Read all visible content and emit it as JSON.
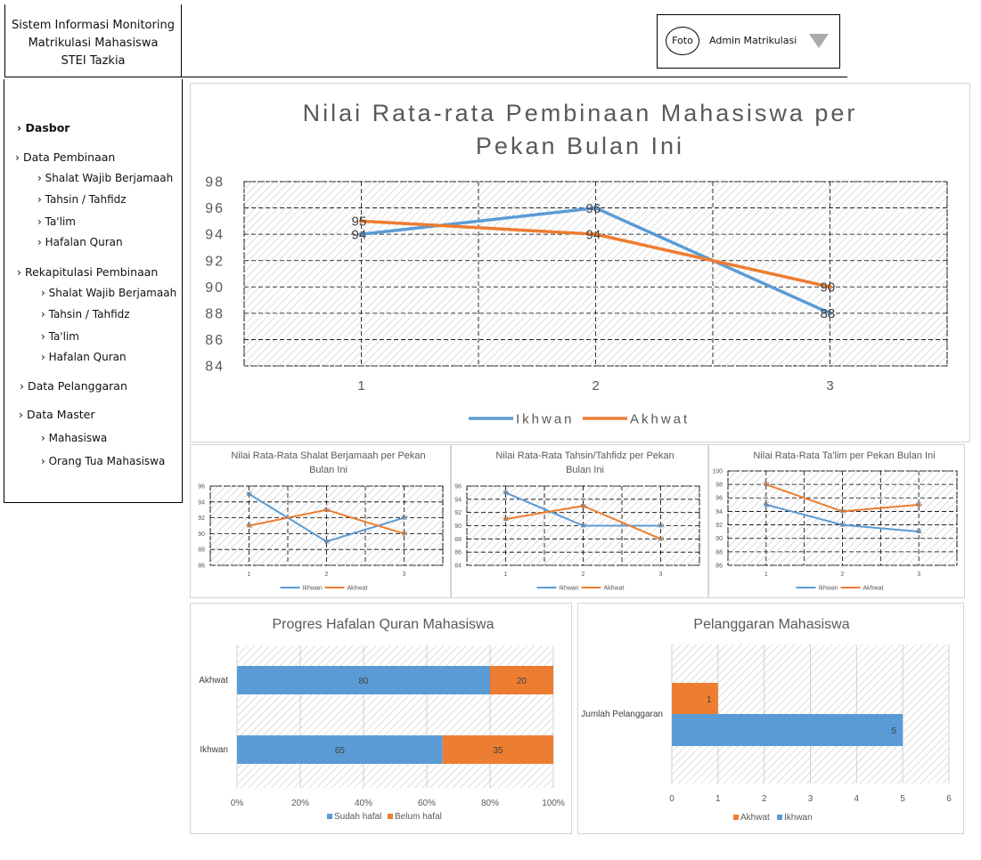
{
  "header": {
    "app_title_lines": [
      "Sistem Informasi Monitoring",
      "Matrikulasi Mahasiswa",
      "STEI Tazkia"
    ],
    "user": {
      "avatar_label": "Foto",
      "name": "Admin Matrikulasi",
      "dropdown_icon": "triangle-down-icon"
    }
  },
  "sidebar": {
    "dashboard": "› Dasbor",
    "pembinaan": {
      "label": "› Data Pembinaan",
      "items": [
        "› Shalat Wajib Berjamaah",
        "› Tahsin / Tahfidz",
        "› Ta'lim",
        "› Hafalan Quran"
      ]
    },
    "rekap": {
      "label": "› Rekapitulasi  Pembinaan",
      "items": [
        "› Shalat Wajib Berjamaah",
        "› Tahsin / Tahfidz",
        "› Ta'lim",
        "› Hafalan Quran"
      ]
    },
    "pelanggaran": "› Data Pelanggaran",
    "master": {
      "label": "› Data Master",
      "items": [
        "› Mahasiswa",
        "› Orang Tua  Mahasiswa"
      ]
    }
  },
  "colors": {
    "ikhwan": "#5b9bd5",
    "akhwat": "#ed7d31",
    "grid_hatch": "#bfbfbf",
    "text": "#595959"
  },
  "chart_data": [
    {
      "id": "main",
      "type": "line",
      "title_lines": [
        "Nilai Rata-rata Pembinaan Mahasiswa per",
        "Pekan Bulan Ini"
      ],
      "categories": [
        "1",
        "2",
        "3"
      ],
      "yticks": [
        "84",
        "86",
        "88",
        "90",
        "92",
        "94",
        "96",
        "98"
      ],
      "ylim": [
        84,
        98
      ],
      "series": [
        {
          "name": "Ikhwan",
          "values": [
            94,
            96,
            88
          ],
          "labels": [
            "94",
            "96",
            "88"
          ]
        },
        {
          "name": "Akhwat",
          "values": [
            95,
            94,
            90
          ],
          "labels": [
            "95",
            "94",
            "90"
          ]
        }
      ],
      "grid": true,
      "legend": "bottom"
    },
    {
      "id": "shalat",
      "type": "line",
      "title_lines": [
        "Nilai Rata-Rata Shalat Berjamaah per Pekan",
        "Bulan Ini"
      ],
      "categories": [
        "1",
        "2",
        "3"
      ],
      "yticks": [
        "86",
        "88",
        "90",
        "92",
        "94",
        "96"
      ],
      "ylim": [
        86,
        96
      ],
      "series": [
        {
          "name": "Ikhwan",
          "values": [
            95,
            89,
            92
          ]
        },
        {
          "name": "Akhwat",
          "values": [
            91,
            93,
            90
          ]
        }
      ],
      "grid": true,
      "legend": "bottom"
    },
    {
      "id": "tahsin",
      "type": "line",
      "title_lines": [
        "Nilai Rata-Rata Tahsin/Tahfidz per Pekan",
        "Bulan Ini"
      ],
      "categories": [
        "1",
        "2",
        "3"
      ],
      "yticks": [
        "84",
        "86",
        "88",
        "90",
        "92",
        "94",
        "96"
      ],
      "ylim": [
        84,
        96
      ],
      "series": [
        {
          "name": "Ikhwan",
          "values": [
            95,
            90,
            90
          ]
        },
        {
          "name": "Akhwat",
          "values": [
            91,
            93,
            88
          ]
        }
      ],
      "grid": true,
      "legend": "bottom"
    },
    {
      "id": "talim",
      "type": "line",
      "title_lines": [
        "Nilai Rata-Rata Ta'lim per Pekan Bulan Ini"
      ],
      "categories": [
        "1",
        "2",
        "3"
      ],
      "yticks": [
        "86",
        "88",
        "90",
        "92",
        "94",
        "96",
        "98",
        "100"
      ],
      "ylim": [
        86,
        100
      ],
      "series": [
        {
          "name": "Ikhwan",
          "values": [
            95,
            92,
            91
          ]
        },
        {
          "name": "Akhwat",
          "values": [
            98,
            94,
            95
          ]
        }
      ],
      "grid": true,
      "legend": "bottom"
    },
    {
      "id": "hafalan",
      "type": "bar",
      "orientation": "horizontal",
      "stacked": "percent",
      "title_lines": [
        "Progres Hafalan Quran Mahasiswa"
      ],
      "categories": [
        "Akhwat",
        "Ikhwan"
      ],
      "xticks": [
        "0%",
        "20%",
        "40%",
        "60%",
        "80%",
        "100%"
      ],
      "xlim": [
        0,
        100
      ],
      "series": [
        {
          "name": "Sudah hafal",
          "values": [
            80,
            65
          ],
          "labels": [
            "80",
            "65"
          ]
        },
        {
          "name": "Belum hafal",
          "values": [
            20,
            35
          ],
          "labels": [
            "20",
            "35"
          ]
        }
      ],
      "grid": true,
      "legend": "bottom"
    },
    {
      "id": "pelanggaran",
      "type": "bar",
      "orientation": "horizontal",
      "title_lines": [
        "Pelanggaran Mahasiswa"
      ],
      "categories": [
        "Jumlah Pelanggaran"
      ],
      "xticks": [
        "0",
        "1",
        "2",
        "3",
        "4",
        "5",
        "6"
      ],
      "xlim": [
        0,
        6
      ],
      "series": [
        {
          "name": "Akhwat",
          "values": [
            1
          ],
          "labels": [
            "1"
          ]
        },
        {
          "name": "Ikhwan",
          "values": [
            5
          ],
          "labels": [
            "5"
          ]
        }
      ],
      "grid": true,
      "legend": "bottom"
    }
  ]
}
